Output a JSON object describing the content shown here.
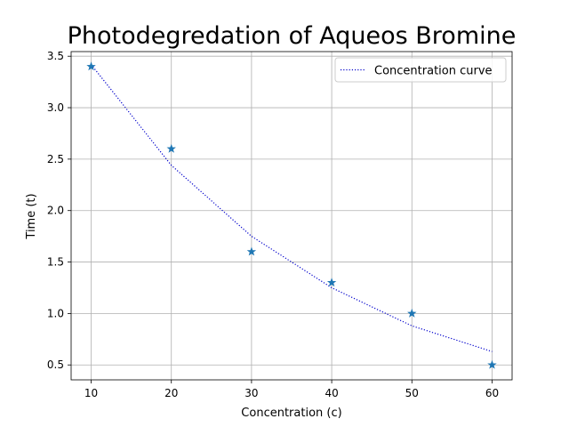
{
  "chart_data": {
    "type": "line",
    "title": "Photodegredation of Aqueos Bromine",
    "xlabel": "Concentration (c)",
    "ylabel": "Time (t)",
    "xlim": [
      7.5,
      62.5
    ],
    "ylim": [
      0.355,
      3.545
    ],
    "xticks": [
      10,
      20,
      30,
      40,
      50,
      60
    ],
    "xtick_labels": [
      "10",
      "20",
      "30",
      "40",
      "50",
      "60"
    ],
    "yticks": [
      0.5,
      1.0,
      1.5,
      2.0,
      2.5,
      3.0,
      3.5
    ],
    "ytick_labels": [
      "0.5",
      "1.0",
      "1.5",
      "2.0",
      "2.5",
      "3.0",
      "3.5"
    ],
    "grid": true,
    "legend": {
      "placement": "top-right",
      "entries": [
        "Concentration curve"
      ]
    },
    "series": [
      {
        "name": "",
        "kind": "scatter",
        "marker": "star",
        "color": "#1f77b4",
        "x": [
          10,
          20,
          30,
          40,
          50,
          60
        ],
        "y": [
          3.4,
          2.6,
          1.6,
          1.3,
          1.0,
          0.5
        ]
      },
      {
        "name": "Concentration curve",
        "kind": "line",
        "linestyle": "dotted",
        "color": "#0000cc",
        "x": [
          10,
          20,
          30,
          40,
          50,
          60
        ],
        "y": [
          3.42,
          2.44,
          1.75,
          1.25,
          0.88,
          0.63
        ]
      }
    ]
  }
}
